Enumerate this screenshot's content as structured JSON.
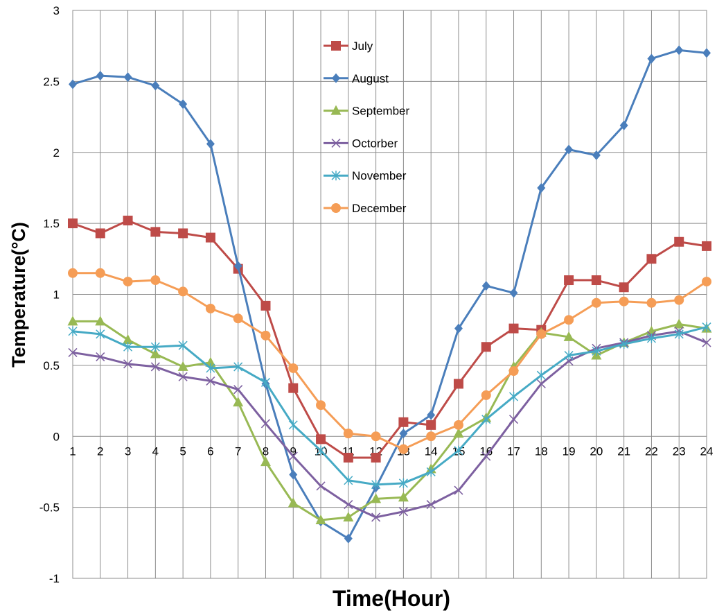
{
  "chart_data": {
    "type": "line",
    "xlabel": "Time(Hour)",
    "ylabel": "Temperature(°C)",
    "categories": [
      "1",
      "2",
      "3",
      "4",
      "5",
      "6",
      "7",
      "8",
      "9",
      "10",
      "11",
      "12",
      "13",
      "14",
      "15",
      "16",
      "17",
      "18",
      "19",
      "20",
      "21",
      "22",
      "23",
      "24"
    ],
    "ylim": [
      -1,
      3
    ],
    "yticks": [
      "-1",
      "-0.5",
      "0",
      "0.5",
      "1",
      "1.5",
      "2",
      "2.5",
      "3"
    ],
    "grid": true,
    "legend_position": "top-center",
    "series": [
      {
        "name": "July",
        "color": "#BE4B48",
        "marker": "square",
        "values": [
          1.5,
          1.43,
          1.52,
          1.44,
          1.43,
          1.4,
          1.18,
          0.92,
          0.34,
          -0.02,
          -0.15,
          -0.15,
          0.1,
          0.08,
          0.37,
          0.63,
          0.76,
          0.75,
          1.1,
          1.1,
          1.05,
          1.25,
          1.37,
          1.34
        ]
      },
      {
        "name": "August",
        "color": "#4A7EBB",
        "marker": "diamond",
        "values": [
          2.48,
          2.54,
          2.53,
          2.47,
          2.34,
          2.06,
          1.2,
          0.37,
          -0.27,
          -0.6,
          -0.72,
          -0.36,
          0.02,
          0.15,
          0.76,
          1.06,
          1.01,
          1.75,
          2.02,
          1.98,
          2.19,
          2.66,
          2.72,
          2.7
        ]
      },
      {
        "name": "September",
        "color": "#98B954",
        "marker": "triangle",
        "values": [
          0.81,
          0.81,
          0.68,
          0.58,
          0.49,
          0.52,
          0.24,
          -0.18,
          -0.47,
          -0.59,
          -0.57,
          -0.44,
          -0.43,
          -0.23,
          0.02,
          0.13,
          0.49,
          0.73,
          0.7,
          0.57,
          0.66,
          0.74,
          0.79,
          0.76
        ]
      },
      {
        "name": "Octorber",
        "color": "#7D60A0",
        "marker": "x",
        "values": [
          0.59,
          0.56,
          0.51,
          0.49,
          0.42,
          0.39,
          0.33,
          0.09,
          -0.14,
          -0.35,
          -0.48,
          -0.57,
          -0.53,
          -0.48,
          -0.38,
          -0.14,
          0.12,
          0.37,
          0.53,
          0.62,
          0.66,
          0.71,
          0.74,
          0.66
        ]
      },
      {
        "name": "November",
        "color": "#46AAC5",
        "marker": "star",
        "values": [
          0.74,
          0.72,
          0.63,
          0.63,
          0.64,
          0.48,
          0.49,
          0.38,
          0.08,
          -0.1,
          -0.31,
          -0.34,
          -0.33,
          -0.25,
          -0.1,
          0.12,
          0.28,
          0.43,
          0.57,
          0.6,
          0.65,
          0.69,
          0.72,
          0.77
        ]
      },
      {
        "name": "December",
        "color": "#F59D56",
        "marker": "circle",
        "values": [
          1.15,
          1.15,
          1.09,
          1.1,
          1.02,
          0.9,
          0.83,
          0.71,
          0.48,
          0.22,
          0.02,
          0.0,
          -0.09,
          0.0,
          0.08,
          0.29,
          0.46,
          0.72,
          0.82,
          0.94,
          0.95,
          0.94,
          0.96,
          1.09
        ]
      }
    ]
  }
}
